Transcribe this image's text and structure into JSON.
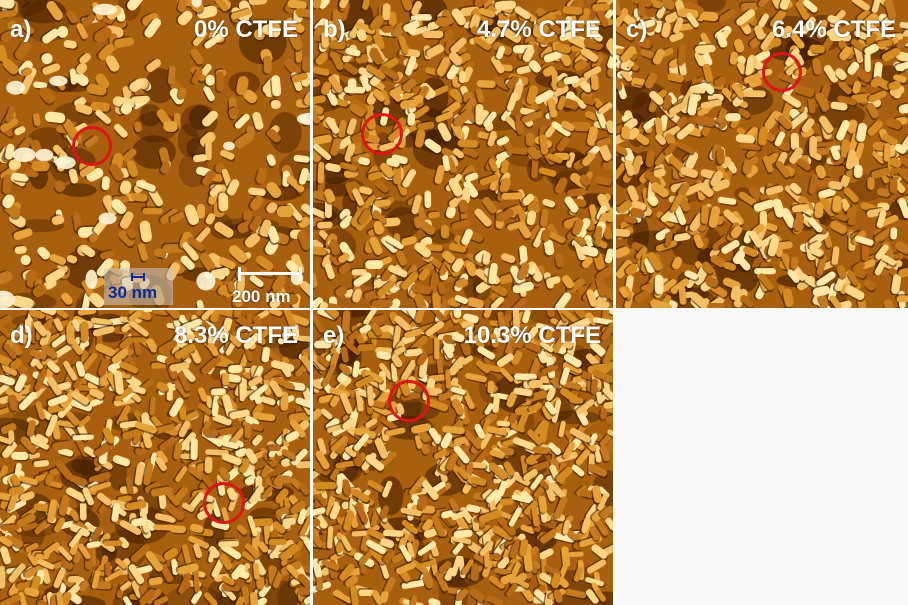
{
  "panels": [
    {
      "label": "a)",
      "composition": "0% CTFE"
    },
    {
      "label": "b)",
      "composition": "4.7% CTFE"
    },
    {
      "label": "c)",
      "composition": "6.4% CTFE"
    },
    {
      "label": "d)",
      "composition": "8.3% CTFE"
    },
    {
      "label": "e)",
      "composition": "10.3% CTFE"
    }
  ],
  "inset_scale_label": "30 nm",
  "scale_bar_label": "200 nm",
  "colors": {
    "highlight_circle": "#e0141a",
    "inset_text": "#0c2a99",
    "afm_dark": "#3a1800",
    "afm_mid": "#a8600e",
    "afm_bright": "#ffe9a8"
  }
}
